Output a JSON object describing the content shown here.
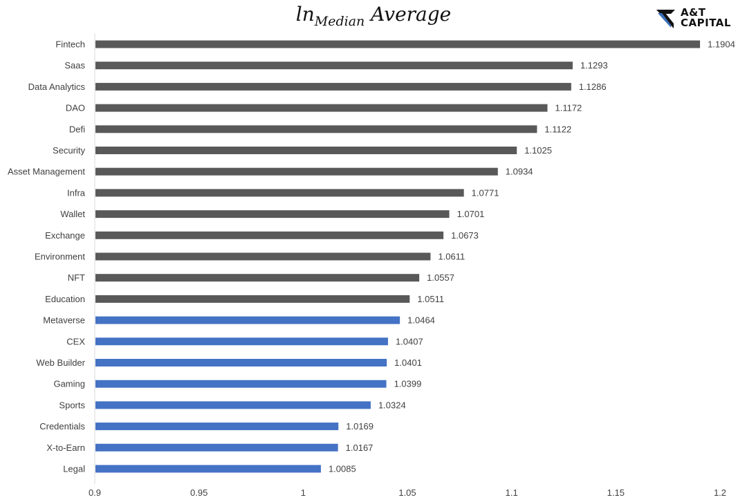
{
  "logo": {
    "line1": "A&T",
    "line2": "CAPITAL",
    "accent": "#3a6fb8"
  },
  "chart_data": {
    "type": "bar",
    "orientation": "horizontal",
    "title_main": "ln",
    "title_sub": "Median",
    "title_rest": " Average",
    "categories": [
      "Fintech",
      "Saas",
      "Data Analytics",
      "DAO",
      "Defi",
      "Security",
      "Asset Management",
      "Infra",
      "Wallet",
      "Exchange",
      "Environment",
      "NFT",
      "Education",
      "Metaverse",
      "CEX",
      "Web Builder",
      "Gaming",
      "Sports",
      "Credentials",
      "X-to-Earn",
      "Legal"
    ],
    "values": [
      1.1904,
      1.1293,
      1.1286,
      1.1172,
      1.1122,
      1.1025,
      1.0934,
      1.0771,
      1.0701,
      1.0673,
      1.0611,
      1.0557,
      1.0511,
      1.0464,
      1.0407,
      1.0401,
      1.0399,
      1.0324,
      1.0169,
      1.0167,
      1.0085
    ],
    "value_labels": [
      "1.1904",
      "1.1293",
      "1.1286",
      "1.1172",
      "1.1122",
      "1.1025",
      "1.0934",
      "1.0771",
      "1.0701",
      "1.0673",
      "1.0611",
      "1.0557",
      "1.0511",
      "1.0464",
      "1.0407",
      "1.0401",
      "1.0399",
      "1.0324",
      "1.0169",
      "1.0167",
      "1.0085"
    ],
    "bar_colors": [
      "#595959",
      "#595959",
      "#595959",
      "#595959",
      "#595959",
      "#595959",
      "#595959",
      "#595959",
      "#595959",
      "#595959",
      "#595959",
      "#595959",
      "#595959",
      "#4472c4",
      "#4472c4",
      "#4472c4",
      "#4472c4",
      "#4472c4",
      "#4472c4",
      "#4472c4",
      "#4472c4"
    ],
    "xlim": [
      0.9,
      1.2
    ],
    "x_ticks": [
      0.9,
      0.95,
      1,
      1.05,
      1.1,
      1.15,
      1.2
    ],
    "x_tick_labels": [
      "0.9",
      "0.95",
      "1",
      "1.05",
      "1.1",
      "1.15",
      "1.2"
    ],
    "grid": false,
    "xlabel": "",
    "ylabel": ""
  }
}
